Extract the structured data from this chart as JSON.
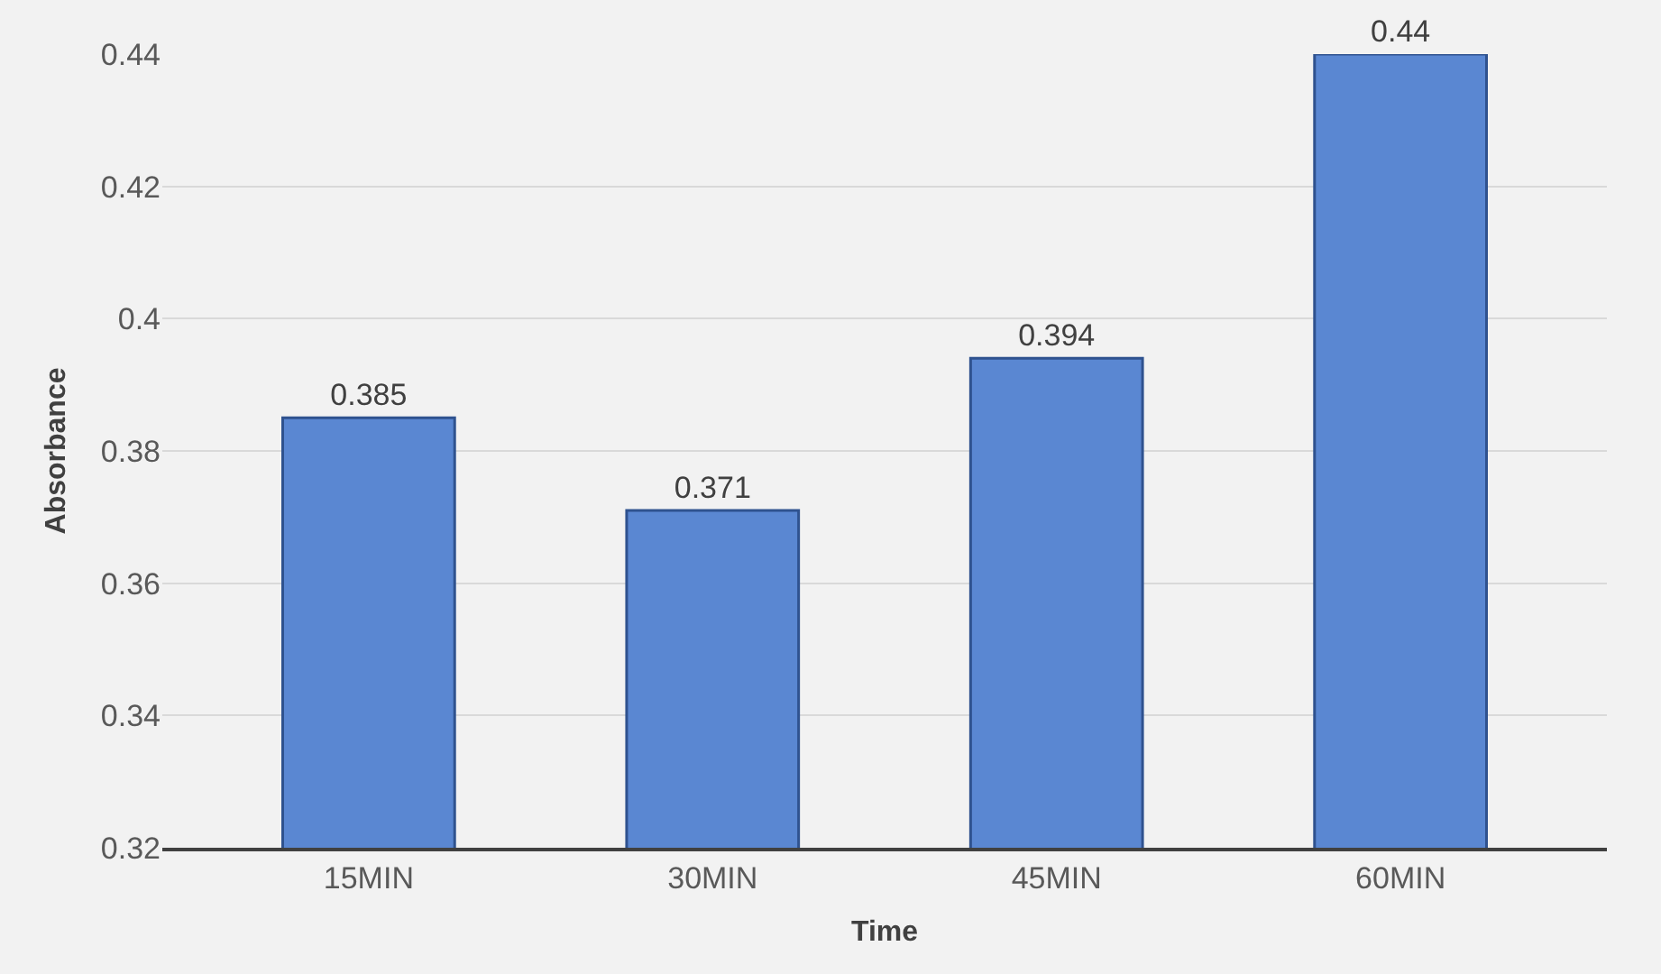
{
  "chart_data": {
    "type": "bar",
    "categories": [
      "15MIN",
      "30MIN",
      "45MIN",
      "60MIN"
    ],
    "values": [
      0.385,
      0.371,
      0.394,
      0.44
    ],
    "color": "#5a87d2",
    "xlabel": "Time",
    "ylabel": "Absorbance",
    "ylim": [
      0.32,
      0.44
    ],
    "yticks": [
      0.32,
      0.34,
      0.36,
      0.38,
      0.4,
      0.42,
      0.44
    ],
    "grid": "y",
    "data_labels": true
  }
}
